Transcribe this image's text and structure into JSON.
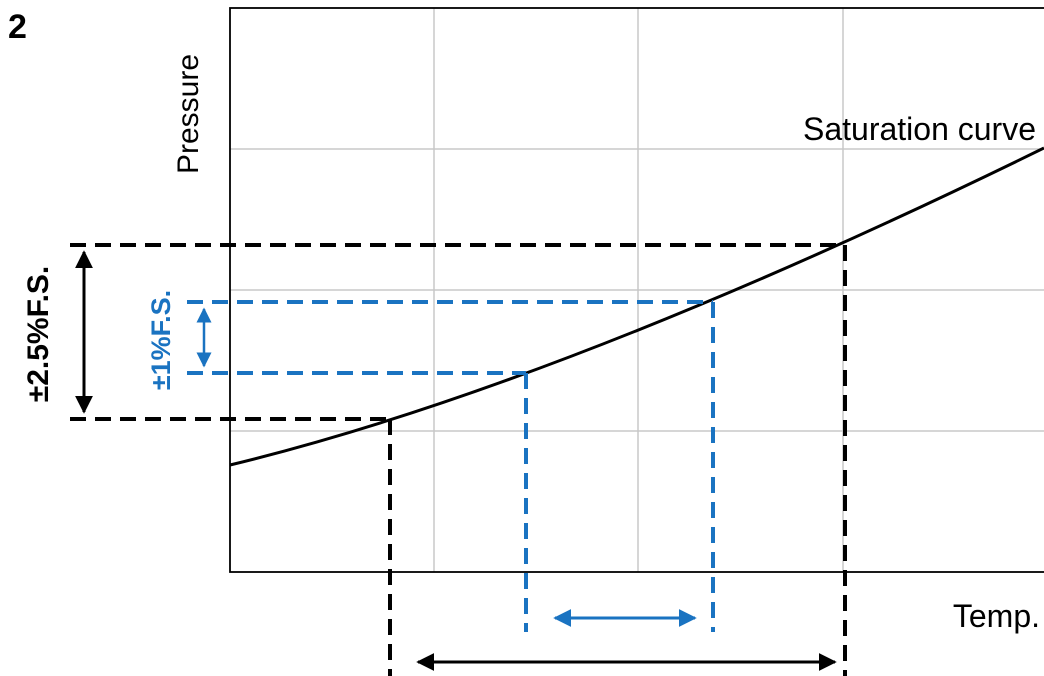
{
  "panel_label": "2",
  "labels": {
    "y_axis": "Pressure",
    "x_axis": "Temp.",
    "curve": "Saturation curve",
    "outer_tolerance": "±2.5%F.S.",
    "inner_tolerance": "±1%F.S."
  },
  "colors": {
    "outer": "#000000",
    "inner": "#1a73c1",
    "grid": "#c8c8c8",
    "curve": "#000000"
  }
}
